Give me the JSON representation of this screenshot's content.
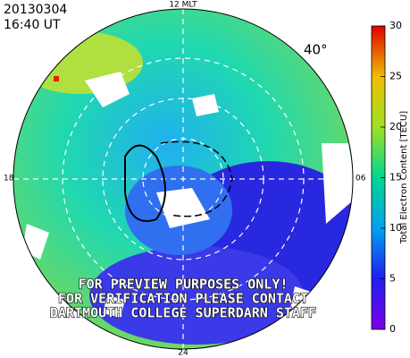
{
  "header": {
    "date": "20130304",
    "time": "16:40 UT"
  },
  "map": {
    "labels": {
      "top": "12 MLT",
      "left": "18",
      "right": "06",
      "bottom": "24",
      "latitude": "40°"
    },
    "watermark": [
      "FOR PREVIEW PURPOSES ONLY!",
      "FOR VERIFICATION PLEASE CONTACT",
      "DARTMOUTH COLLEGE SUPERDARN STAFF"
    ]
  },
  "colorbar": {
    "label": "Total Electron Content [TECU]",
    "range": [
      0,
      30
    ],
    "ticks": [
      0,
      5,
      10,
      15,
      20,
      25,
      30
    ]
  }
}
